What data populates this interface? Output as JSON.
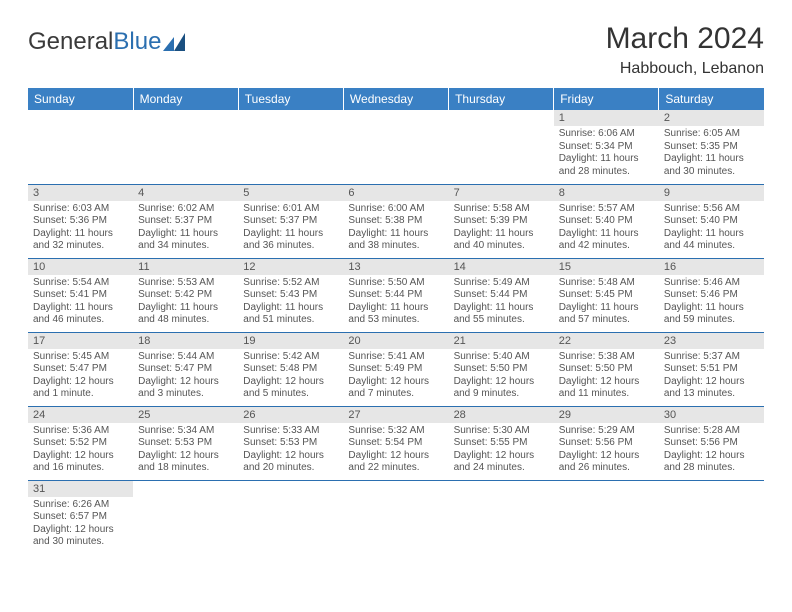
{
  "logo": {
    "text1": "General",
    "text2": "Blue"
  },
  "title": "March 2024",
  "location": "Habbouch, Lebanon",
  "colors": {
    "header_bg": "#3a80c4",
    "header_text": "#ffffff",
    "daynum_bg": "#e6e6e6",
    "border": "#2b6fb0",
    "body_text": "#555555"
  },
  "day_headers": [
    "Sunday",
    "Monday",
    "Tuesday",
    "Wednesday",
    "Thursday",
    "Friday",
    "Saturday"
  ],
  "weeks": [
    [
      null,
      null,
      null,
      null,
      null,
      {
        "n": "1",
        "sr": "Sunrise: 6:06 AM",
        "ss": "Sunset: 5:34 PM",
        "dl": "Daylight: 11 hours and 28 minutes."
      },
      {
        "n": "2",
        "sr": "Sunrise: 6:05 AM",
        "ss": "Sunset: 5:35 PM",
        "dl": "Daylight: 11 hours and 30 minutes."
      }
    ],
    [
      {
        "n": "3",
        "sr": "Sunrise: 6:03 AM",
        "ss": "Sunset: 5:36 PM",
        "dl": "Daylight: 11 hours and 32 minutes."
      },
      {
        "n": "4",
        "sr": "Sunrise: 6:02 AM",
        "ss": "Sunset: 5:37 PM",
        "dl": "Daylight: 11 hours and 34 minutes."
      },
      {
        "n": "5",
        "sr": "Sunrise: 6:01 AM",
        "ss": "Sunset: 5:37 PM",
        "dl": "Daylight: 11 hours and 36 minutes."
      },
      {
        "n": "6",
        "sr": "Sunrise: 6:00 AM",
        "ss": "Sunset: 5:38 PM",
        "dl": "Daylight: 11 hours and 38 minutes."
      },
      {
        "n": "7",
        "sr": "Sunrise: 5:58 AM",
        "ss": "Sunset: 5:39 PM",
        "dl": "Daylight: 11 hours and 40 minutes."
      },
      {
        "n": "8",
        "sr": "Sunrise: 5:57 AM",
        "ss": "Sunset: 5:40 PM",
        "dl": "Daylight: 11 hours and 42 minutes."
      },
      {
        "n": "9",
        "sr": "Sunrise: 5:56 AM",
        "ss": "Sunset: 5:40 PM",
        "dl": "Daylight: 11 hours and 44 minutes."
      }
    ],
    [
      {
        "n": "10",
        "sr": "Sunrise: 5:54 AM",
        "ss": "Sunset: 5:41 PM",
        "dl": "Daylight: 11 hours and 46 minutes."
      },
      {
        "n": "11",
        "sr": "Sunrise: 5:53 AM",
        "ss": "Sunset: 5:42 PM",
        "dl": "Daylight: 11 hours and 48 minutes."
      },
      {
        "n": "12",
        "sr": "Sunrise: 5:52 AM",
        "ss": "Sunset: 5:43 PM",
        "dl": "Daylight: 11 hours and 51 minutes."
      },
      {
        "n": "13",
        "sr": "Sunrise: 5:50 AM",
        "ss": "Sunset: 5:44 PM",
        "dl": "Daylight: 11 hours and 53 minutes."
      },
      {
        "n": "14",
        "sr": "Sunrise: 5:49 AM",
        "ss": "Sunset: 5:44 PM",
        "dl": "Daylight: 11 hours and 55 minutes."
      },
      {
        "n": "15",
        "sr": "Sunrise: 5:48 AM",
        "ss": "Sunset: 5:45 PM",
        "dl": "Daylight: 11 hours and 57 minutes."
      },
      {
        "n": "16",
        "sr": "Sunrise: 5:46 AM",
        "ss": "Sunset: 5:46 PM",
        "dl": "Daylight: 11 hours and 59 minutes."
      }
    ],
    [
      {
        "n": "17",
        "sr": "Sunrise: 5:45 AM",
        "ss": "Sunset: 5:47 PM",
        "dl": "Daylight: 12 hours and 1 minute."
      },
      {
        "n": "18",
        "sr": "Sunrise: 5:44 AM",
        "ss": "Sunset: 5:47 PM",
        "dl": "Daylight: 12 hours and 3 minutes."
      },
      {
        "n": "19",
        "sr": "Sunrise: 5:42 AM",
        "ss": "Sunset: 5:48 PM",
        "dl": "Daylight: 12 hours and 5 minutes."
      },
      {
        "n": "20",
        "sr": "Sunrise: 5:41 AM",
        "ss": "Sunset: 5:49 PM",
        "dl": "Daylight: 12 hours and 7 minutes."
      },
      {
        "n": "21",
        "sr": "Sunrise: 5:40 AM",
        "ss": "Sunset: 5:50 PM",
        "dl": "Daylight: 12 hours and 9 minutes."
      },
      {
        "n": "22",
        "sr": "Sunrise: 5:38 AM",
        "ss": "Sunset: 5:50 PM",
        "dl": "Daylight: 12 hours and 11 minutes."
      },
      {
        "n": "23",
        "sr": "Sunrise: 5:37 AM",
        "ss": "Sunset: 5:51 PM",
        "dl": "Daylight: 12 hours and 13 minutes."
      }
    ],
    [
      {
        "n": "24",
        "sr": "Sunrise: 5:36 AM",
        "ss": "Sunset: 5:52 PM",
        "dl": "Daylight: 12 hours and 16 minutes."
      },
      {
        "n": "25",
        "sr": "Sunrise: 5:34 AM",
        "ss": "Sunset: 5:53 PM",
        "dl": "Daylight: 12 hours and 18 minutes."
      },
      {
        "n": "26",
        "sr": "Sunrise: 5:33 AM",
        "ss": "Sunset: 5:53 PM",
        "dl": "Daylight: 12 hours and 20 minutes."
      },
      {
        "n": "27",
        "sr": "Sunrise: 5:32 AM",
        "ss": "Sunset: 5:54 PM",
        "dl": "Daylight: 12 hours and 22 minutes."
      },
      {
        "n": "28",
        "sr": "Sunrise: 5:30 AM",
        "ss": "Sunset: 5:55 PM",
        "dl": "Daylight: 12 hours and 24 minutes."
      },
      {
        "n": "29",
        "sr": "Sunrise: 5:29 AM",
        "ss": "Sunset: 5:56 PM",
        "dl": "Daylight: 12 hours and 26 minutes."
      },
      {
        "n": "30",
        "sr": "Sunrise: 5:28 AM",
        "ss": "Sunset: 5:56 PM",
        "dl": "Daylight: 12 hours and 28 minutes."
      }
    ],
    [
      {
        "n": "31",
        "sr": "Sunrise: 6:26 AM",
        "ss": "Sunset: 6:57 PM",
        "dl": "Daylight: 12 hours and 30 minutes."
      },
      null,
      null,
      null,
      null,
      null,
      null
    ]
  ]
}
